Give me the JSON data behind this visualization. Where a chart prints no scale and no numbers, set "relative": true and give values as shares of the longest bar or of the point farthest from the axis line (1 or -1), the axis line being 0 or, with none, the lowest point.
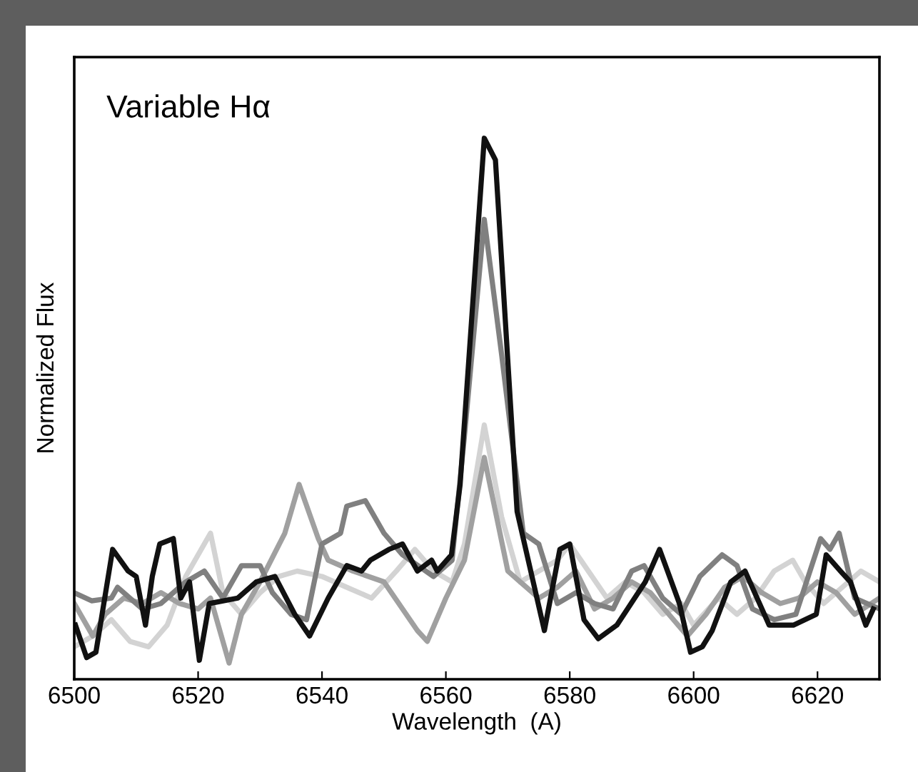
{
  "chart_data": {
    "type": "line",
    "title": "Variable Hα",
    "xlabel": "Wavelength  (A)",
    "ylabel": "Normalized Flux",
    "relative": true,
    "xlim": [
      6500,
      6630
    ],
    "xticks": [
      6500,
      6520,
      6540,
      6560,
      6580,
      6600,
      6620
    ],
    "grid": false,
    "legend": false,
    "tick_labels": "x",
    "line_style": "solid",
    "marker": "none",
    "series": [
      {
        "color": "#d3d3d3",
        "x": [
          6500,
          6503,
          6506,
          6509,
          6512,
          6515,
          6518,
          6522,
          6524,
          6527,
          6530,
          6533,
          6536,
          6540,
          6544,
          6548,
          6552,
          6555,
          6558,
          6561,
          6563,
          6566.2,
          6569,
          6572,
          6575,
          6578,
          6580,
          6583,
          6586,
          6589,
          6592,
          6595,
          6598,
          6600,
          6604,
          6607,
          6610,
          6613,
          6616,
          6618,
          6621,
          6624,
          6627,
          6630
        ],
        "values": [
          0.06,
          0.08,
          0.11,
          0.07,
          0.06,
          0.1,
          0.19,
          0.27,
          0.16,
          0.12,
          0.16,
          0.19,
          0.2,
          0.19,
          0.17,
          0.15,
          0.2,
          0.24,
          0.2,
          0.18,
          0.25,
          0.47,
          0.3,
          0.18,
          0.2,
          0.22,
          0.25,
          0.2,
          0.15,
          0.18,
          0.16,
          0.12,
          0.14,
          0.1,
          0.15,
          0.12,
          0.15,
          0.2,
          0.22,
          0.18,
          0.14,
          0.17,
          0.2,
          0.18
        ]
      },
      {
        "color": "#a0a0a0",
        "x": [
          6500,
          6503,
          6505,
          6508,
          6511,
          6514,
          6517,
          6520,
          6522,
          6525,
          6527,
          6530,
          6534,
          6536.3,
          6539.4,
          6541,
          6545,
          6550,
          6555.4,
          6557,
          6560,
          6563,
          6566.2,
          6570,
          6572,
          6575,
          6578,
          6581,
          6584,
          6587,
          6590,
          6593,
          6596,
          6599,
          6602,
          6605,
          6608,
          6611,
          6614,
          6617,
          6620,
          6623,
          6626,
          6630
        ],
        "values": [
          0.14,
          0.08,
          0.12,
          0.15,
          0.14,
          0.16,
          0.14,
          0.13,
          0.15,
          0.03,
          0.12,
          0.18,
          0.27,
          0.36,
          0.26,
          0.22,
          0.2,
          0.18,
          0.09,
          0.07,
          0.15,
          0.22,
          0.41,
          0.2,
          0.18,
          0.15,
          0.17,
          0.2,
          0.13,
          0.15,
          0.18,
          0.16,
          0.12,
          0.08,
          0.12,
          0.17,
          0.19,
          0.16,
          0.14,
          0.15,
          0.18,
          0.16,
          0.12,
          0.15
        ]
      },
      {
        "color": "#808080",
        "x": [
          6500,
          6502.8,
          6506,
          6507,
          6511,
          6514,
          6518,
          6521,
          6524,
          6527,
          6530,
          6532,
          6535,
          6537.5,
          6540,
          6543,
          6544,
          6547,
          6550,
          6553,
          6555.5,
          6558,
          6561,
          6563,
          6566.2,
          6569,
          6572.5,
          6575,
          6578,
          6581,
          6584,
          6587,
          6590,
          6592,
          6595,
          6598,
          6601,
          6604.6,
          6607,
          6609.5,
          6613,
          6616.5,
          6620.5,
          6622,
          6623.5,
          6626,
          6630
        ],
        "values": [
          0.16,
          0.145,
          0.15,
          0.17,
          0.13,
          0.14,
          0.18,
          0.2,
          0.15,
          0.21,
          0.21,
          0.16,
          0.12,
          0.11,
          0.25,
          0.27,
          0.32,
          0.33,
          0.27,
          0.23,
          0.21,
          0.19,
          0.22,
          0.45,
          0.85,
          0.6,
          0.27,
          0.25,
          0.14,
          0.16,
          0.14,
          0.13,
          0.2,
          0.21,
          0.15,
          0.12,
          0.19,
          0.23,
          0.21,
          0.13,
          0.11,
          0.12,
          0.26,
          0.24,
          0.27,
          0.15,
          0.13
        ]
      },
      {
        "color": "#111111",
        "x": [
          6500.2,
          6502,
          6503.5,
          6506.2,
          6508.7,
          6510,
          6511.5,
          6512.6,
          6513.8,
          6516,
          6517.2,
          6518.6,
          6520.2,
          6521.8,
          6526.4,
          6529.4,
          6532.4,
          6535.6,
          6538,
          6541,
          6544,
          6546.4,
          6547.8,
          6550.8,
          6553,
          6555.4,
          6557.7,
          6558.6,
          6560.9,
          6562.3,
          6566.2,
          6568,
          6571.5,
          6575.9,
          6578.4,
          6580,
          6582.3,
          6584.6,
          6587.6,
          6592.2,
          6594.5,
          6597.7,
          6599.5,
          6601.4,
          6603,
          6606,
          6608.3,
          6612.2,
          6616.1,
          6619.8,
          6621.4,
          6623.7,
          6625.3,
          6627.8,
          6629
        ],
        "values": [
          0.1,
          0.04,
          0.05,
          0.24,
          0.2,
          0.19,
          0.1,
          0.19,
          0.25,
          0.26,
          0.15,
          0.18,
          0.035,
          0.14,
          0.15,
          0.18,
          0.19,
          0.12,
          0.08,
          0.15,
          0.21,
          0.2,
          0.22,
          0.24,
          0.25,
          0.2,
          0.22,
          0.2,
          0.23,
          0.36,
          1.0,
          0.96,
          0.31,
          0.09,
          0.24,
          0.25,
          0.11,
          0.075,
          0.1,
          0.18,
          0.24,
          0.14,
          0.05,
          0.06,
          0.09,
          0.18,
          0.2,
          0.1,
          0.1,
          0.12,
          0.23,
          0.2,
          0.18,
          0.1,
          0.13
        ]
      }
    ]
  }
}
